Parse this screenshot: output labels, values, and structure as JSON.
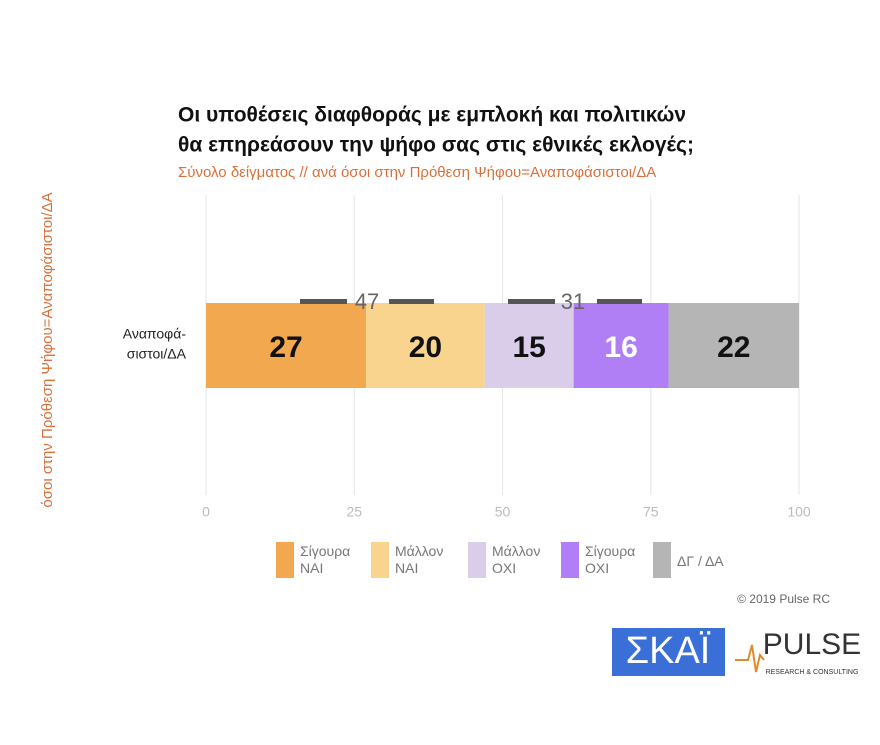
{
  "chart_data": {
    "type": "stacked-bar",
    "title": [
      "Οι υποθέσεις διαφθοράς με εμπλοκή και πολιτικών",
      "θα επηρεάσουν την ψήφο σας στις εθνικές εκλογές;"
    ],
    "subtitle": "Σύνολο δείγματος // ανά όσοι στην Πρόθεση Ψήφου=Αναποφάσιστοι/ΔΑ",
    "y_label": "όσοι στην Πρόθεση Ψήφου=Αναποφάσιστοι/ΔΑ",
    "categories": [
      [
        "Αναποφά-",
        "σιστοι/ΔΑ"
      ]
    ],
    "series": [
      {
        "name": "Σίγουρα ΝΑΙ",
        "color": "#f2a84f",
        "values": [
          27
        ]
      },
      {
        "name": "Μάλλον ΝΑΙ",
        "color": "#f8d48e",
        "values": [
          20
        ]
      },
      {
        "name": "Μάλλον ΟΧΙ",
        "color": "#d9cdea",
        "values": [
          15
        ]
      },
      {
        "name": "Σίγουρα ΟΧΙ",
        "color": "#b07ff5",
        "values": [
          16
        ]
      },
      {
        "name": "ΔΓ / ΔΑ",
        "color": "#b5b5b5",
        "values": [
          22
        ]
      }
    ],
    "annotations": [
      47,
      31
    ],
    "xlim": [
      0,
      100
    ],
    "xticks": [
      0,
      25,
      50,
      75,
      100
    ],
    "grid": true,
    "copyright": "© 2019 Pulse RC",
    "logos": {
      "skai": "ΣΚΑΪ",
      "pulse": "PULSE",
      "pulse_sub": "RESEARCH & CONSULTING"
    }
  }
}
